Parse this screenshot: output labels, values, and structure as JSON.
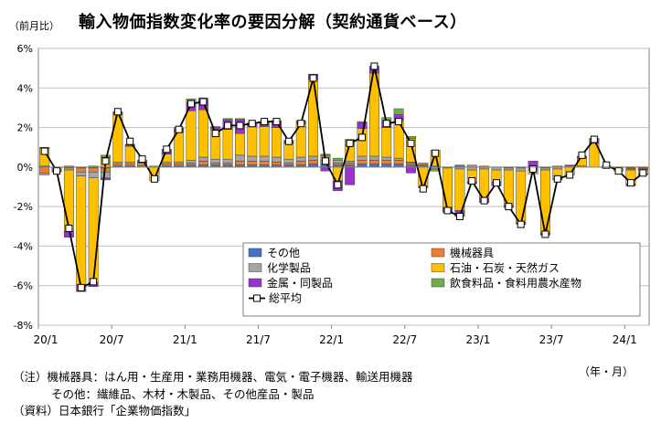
{
  "title": "輸入物価指数変化率の要因分解（契約通貨ベース）",
  "unit_label": "（前月比）",
  "x_unit_label": "（年・月）",
  "notes": [
    "（注）機械器具：はん用・生産用・業務用機器、電気・電子機器、輸送用機器",
    "その他：繊維品、木材・木製品、その他産品・製品",
    "（資料）日本銀行「企業物価指数」"
  ],
  "chart_data": {
    "type": "bar",
    "stacked": true,
    "y_unit": "%",
    "ylim": [
      -8,
      6
    ],
    "yticks": [
      6,
      4,
      2,
      0,
      -2,
      -4,
      -6,
      -8
    ],
    "ytick_labels": [
      "6%",
      "4%",
      "2%",
      "0%",
      "-2%",
      "-4%",
      "-6%",
      "-8%"
    ],
    "xtick_labels": [
      {
        "label": "20/1",
        "index": 0
      },
      {
        "label": "20/7",
        "index": 6
      },
      {
        "label": "21/1",
        "index": 12
      },
      {
        "label": "21/7",
        "index": 18
      },
      {
        "label": "22/1",
        "index": 24
      },
      {
        "label": "22/7",
        "index": 30
      },
      {
        "label": "23/1",
        "index": 36
      },
      {
        "label": "23/7",
        "index": 42
      },
      {
        "label": "24/1",
        "index": 48
      }
    ],
    "grid": "horizontal",
    "legend_position": "bottom-right",
    "categories": [
      "20/1",
      "20/2",
      "20/3",
      "20/4",
      "20/5",
      "20/6",
      "20/7",
      "20/8",
      "20/9",
      "20/10",
      "20/11",
      "20/12",
      "21/1",
      "21/2",
      "21/3",
      "21/4",
      "21/5",
      "21/6",
      "21/7",
      "21/8",
      "21/9",
      "21/10",
      "21/11",
      "21/12",
      "22/1",
      "22/2",
      "22/3",
      "22/4",
      "22/5",
      "22/6",
      "22/7",
      "22/8",
      "22/9",
      "22/10",
      "22/11",
      "22/12",
      "23/1",
      "23/2",
      "23/3",
      "23/4",
      "23/5",
      "23/6",
      "23/7",
      "23/8",
      "23/9",
      "23/10",
      "23/11",
      "23/12",
      "24/1",
      "24/2"
    ],
    "series": [
      {
        "name": "その他",
        "color": "#4472c4",
        "values": [
          0.05,
          0,
          -0.05,
          -0.05,
          -0.05,
          -0.05,
          0.05,
          0.05,
          0,
          0,
          0.05,
          0.05,
          0.1,
          0.1,
          0.1,
          0.1,
          0.1,
          0.1,
          0.1,
          0.1,
          0.1,
          0.1,
          0.15,
          0.15,
          0.1,
          0.1,
          0.15,
          0.15,
          0.15,
          0.15,
          0.1,
          0.1,
          0.05,
          0,
          0.05,
          0,
          0,
          0,
          -0.05,
          -0.05,
          -0.05,
          -0.05,
          0,
          0,
          0,
          0,
          0,
          0,
          -0.05,
          -0.05
        ]
      },
      {
        "name": "機械器具",
        "color": "#ed7d31",
        "values": [
          -0.3,
          -0.1,
          0.05,
          -0.2,
          -0.2,
          -0.2,
          0.1,
          0.1,
          0.05,
          0,
          0.1,
          0.1,
          0.1,
          0.2,
          0.1,
          0.1,
          0.2,
          0.2,
          0.2,
          0.15,
          0.1,
          0.2,
          0.2,
          0.2,
          0.1,
          0.1,
          0.2,
          0.2,
          0.2,
          0.2,
          0.1,
          0.1,
          0,
          0,
          0.05,
          0.1,
          0.05,
          0,
          0,
          0,
          0,
          0,
          0.05,
          0.05,
          0.05,
          0,
          0,
          0,
          -0.05,
          -0.05
        ]
      },
      {
        "name": "化学製品",
        "color": "#a5a5a5",
        "values": [
          -0.1,
          -0.05,
          -0.1,
          -0.2,
          -0.3,
          -0.3,
          0.1,
          0.1,
          0.05,
          0,
          0.1,
          0.1,
          0.15,
          0.2,
          0.2,
          0.2,
          0.3,
          0.25,
          0.25,
          0.25,
          0.2,
          0.2,
          0.2,
          0.2,
          0.15,
          0.1,
          0.2,
          0.2,
          0.15,
          0.1,
          0.05,
          0,
          -0.1,
          -0.05,
          -0.1,
          -0.15,
          -0.1,
          -0.15,
          -0.1,
          -0.15,
          -0.1,
          -0.1,
          -0.1,
          0,
          0,
          0,
          -0.05,
          0,
          -0.05,
          -0.05
        ]
      },
      {
        "name": "石油・石炭・天然ガス",
        "color": "#ffc000",
        "values": [
          0.9,
          -0.05,
          -3.1,
          -5.5,
          -5.3,
          0.5,
          2.4,
          0.8,
          0.1,
          -0.7,
          0.4,
          1.5,
          2.5,
          2.4,
          1.5,
          1.5,
          1.1,
          1.5,
          1.5,
          1.5,
          0.8,
          1.7,
          3.9,
          0.05,
          -0.7,
          0.8,
          1.4,
          4.2,
          1.5,
          1.9,
          1.2,
          -1.0,
          0.8,
          -2.0,
          -2.1,
          -0.6,
          -1.5,
          -0.6,
          -1.8,
          -2.6,
          -0.2,
          -3.2,
          -0.5,
          -0.4,
          0.4,
          1.2,
          0.05,
          -0.2,
          -0.7,
          -0.2
        ]
      },
      {
        "name": "金属・同製品",
        "color": "#9933cc",
        "values": [
          0,
          -0.05,
          -0.3,
          -0.3,
          -0.2,
          -0.1,
          0.1,
          0.1,
          0.05,
          0,
          0.2,
          0.2,
          0.4,
          0.5,
          0.1,
          0.5,
          0.7,
          0.1,
          0.2,
          0.3,
          0.1,
          0.1,
          0.2,
          -0.2,
          -0.5,
          -0.9,
          0.3,
          0.3,
          0.3,
          0.3,
          -0.3,
          -0.05,
          0,
          -0.2,
          -0.3,
          -0.1,
          -0.2,
          -0.2,
          -0.1,
          -0.1,
          0.3,
          -0.1,
          -0.05,
          0.05,
          0.1,
          0.2,
          0,
          0,
          -0.1,
          -0.05
        ]
      },
      {
        "name": "飲食料品・食料用農水産物",
        "color": "#70ad47",
        "values": [
          0.05,
          0,
          0,
          -0.05,
          0.05,
          0.1,
          0.05,
          0,
          0.1,
          0.05,
          0.05,
          0.05,
          0.2,
          0.1,
          0.05,
          0.05,
          0.05,
          0.1,
          0.05,
          0.05,
          0.05,
          0.05,
          0.05,
          0.05,
          0.1,
          0.3,
          0.05,
          0.05,
          0.2,
          0.3,
          0.1,
          0,
          -0.1,
          -0.05,
          0,
          0,
          0,
          0,
          0,
          0,
          0,
          0,
          0,
          0,
          0,
          0.05,
          0,
          0,
          0,
          0
        ]
      }
    ],
    "total": {
      "name": "総平均",
      "color": "#000000",
      "values": [
        0.8,
        -0.2,
        -3.1,
        -6.1,
        -5.8,
        0.3,
        2.8,
        1.3,
        0.4,
        -0.6,
        0.9,
        1.9,
        3.2,
        3.3,
        1.7,
        2.1,
        2.1,
        2.2,
        2.3,
        2.3,
        1.3,
        2.2,
        4.5,
        0.3,
        -0.9,
        1.2,
        1.5,
        5.1,
        2.2,
        2.3,
        1.2,
        -1.1,
        0.7,
        -2.2,
        -2.5,
        -0.7,
        -1.7,
        -0.8,
        -2.0,
        -2.9,
        -0.1,
        -3.4,
        -0.6,
        -0.4,
        0.6,
        1.4,
        0.1,
        -0.2,
        -0.8,
        -0.3
      ]
    }
  }
}
